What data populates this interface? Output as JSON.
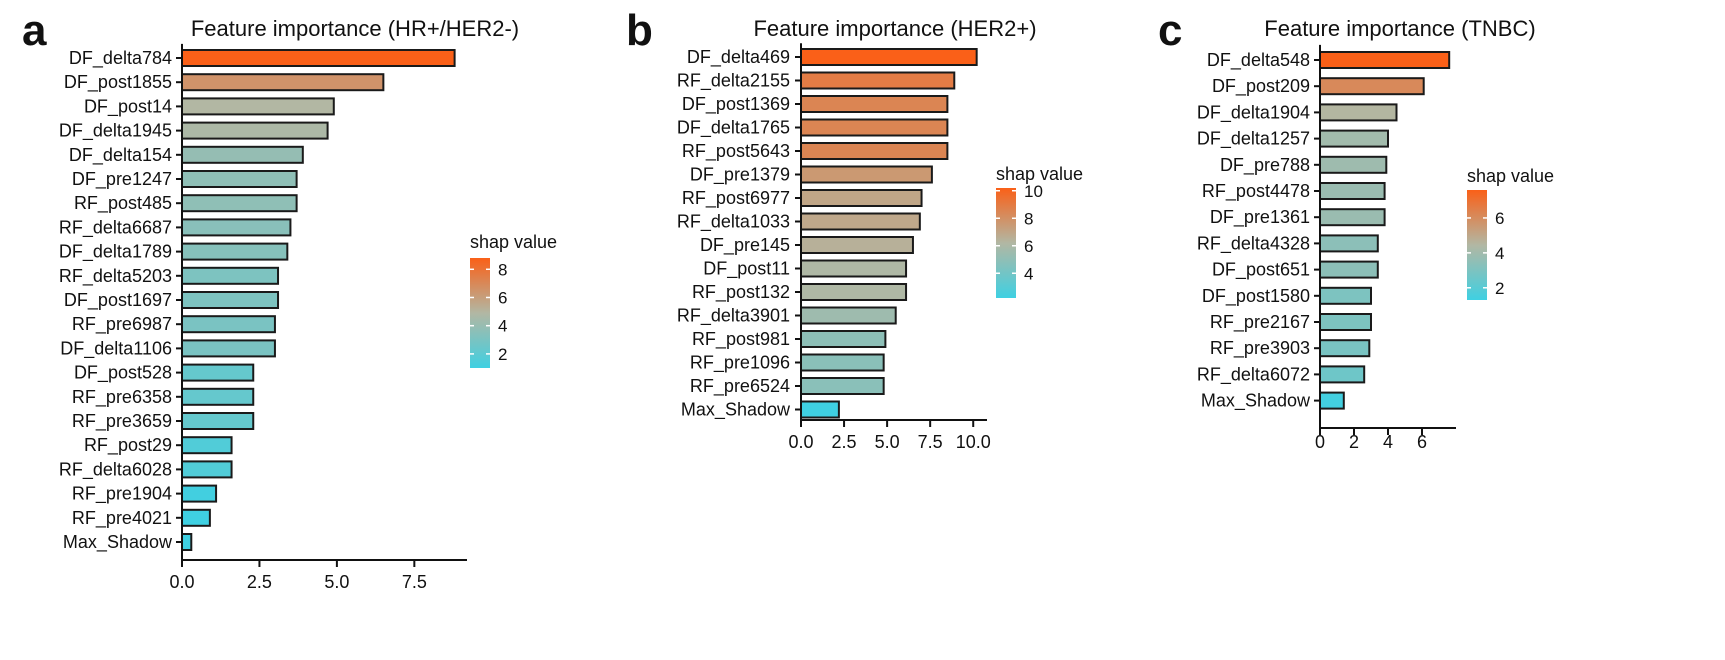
{
  "chart_data": [
    {
      "panel": "a",
      "type": "bar",
      "orientation": "horizontal",
      "title": "Feature importance (HR+/HER2-)",
      "xlabel": "",
      "ylabel": "",
      "categories": [
        "DF_delta784",
        "DF_post1855",
        "DF_post14",
        "DF_delta1945",
        "DF_delta154",
        "DF_pre1247",
        "RF_post485",
        "RF_delta6687",
        "DF_delta1789",
        "RF_delta5203",
        "DF_post1697",
        "RF_pre6987",
        "DF_delta1106",
        "DF_post528",
        "RF_pre6358",
        "RF_pre3659",
        "RF_post29",
        "RF_delta6028",
        "RF_pre1904",
        "RF_pre4021",
        "Max_Shadow"
      ],
      "values": [
        8.8,
        6.5,
        4.9,
        4.7,
        3.9,
        3.7,
        3.7,
        3.5,
        3.4,
        3.1,
        3.1,
        3.0,
        3.0,
        2.3,
        2.3,
        2.3,
        1.6,
        1.6,
        1.1,
        0.9,
        0.3
      ],
      "xlim": [
        0,
        9.2
      ],
      "xticks": [
        "0.0",
        "2.5",
        "5.0",
        "7.5"
      ],
      "xtick_values": [
        0,
        2.5,
        5,
        7.5
      ],
      "legend": {
        "title": "shap value",
        "min": 1,
        "max": 8.8,
        "ticks": [
          "2",
          "4",
          "6",
          "8"
        ],
        "tick_values": [
          2,
          4,
          6,
          8
        ],
        "placement": "right"
      }
    },
    {
      "panel": "b",
      "type": "bar",
      "orientation": "horizontal",
      "title": "Feature importance (HER2+)",
      "xlabel": "",
      "ylabel": "",
      "categories": [
        "DF_delta469",
        "RF_delta2155",
        "DF_post1369",
        "DF_delta1765",
        "RF_post5643",
        "DF_pre1379",
        "RF_post6977",
        "RF_delta1033",
        "DF_pre145",
        "DF_post11",
        "RF_post132",
        "RF_delta3901",
        "RF_post981",
        "RF_pre1096",
        "RF_pre6524",
        "Max_Shadow"
      ],
      "values": [
        10.2,
        8.9,
        8.5,
        8.5,
        8.5,
        7.6,
        7.0,
        6.9,
        6.5,
        6.1,
        6.1,
        5.5,
        4.9,
        4.8,
        4.8,
        2.2
      ],
      "xlim": [
        0,
        10.8
      ],
      "xticks": [
        "0.0",
        "2.5",
        "5.0",
        "7.5",
        "10.0"
      ],
      "xtick_values": [
        0,
        2.5,
        5,
        7.5,
        10
      ],
      "legend": {
        "title": "shap value",
        "min": 2.2,
        "max": 10.2,
        "ticks": [
          "4",
          "6",
          "8",
          "10"
        ],
        "tick_values": [
          4,
          6,
          8,
          10
        ],
        "placement": "right"
      }
    },
    {
      "panel": "c",
      "type": "bar",
      "orientation": "horizontal",
      "title": "Feature importance (TNBC)",
      "xlabel": "",
      "ylabel": "",
      "categories": [
        "DF_delta548",
        "DF_post209",
        "DF_delta1904",
        "DF_delta1257",
        "DF_pre788",
        "RF_post4478",
        "DF_pre1361",
        "RF_delta4328",
        "DF_post651",
        "DF_post1580",
        "RF_pre2167",
        "RF_pre3903",
        "RF_delta6072",
        "Max_Shadow"
      ],
      "values": [
        7.6,
        6.1,
        4.5,
        4.0,
        3.9,
        3.8,
        3.8,
        3.4,
        3.4,
        3.0,
        3.0,
        2.9,
        2.6,
        1.4
      ],
      "xlim": [
        0,
        8.0
      ],
      "xticks": [
        "0",
        "2",
        "4",
        "6"
      ],
      "xtick_values": [
        0,
        2,
        4,
        6
      ],
      "legend": {
        "title": "shap value",
        "min": 1.3,
        "max": 7.6,
        "ticks": [
          "2",
          "4",
          "6"
        ],
        "tick_values": [
          2,
          4,
          6
        ],
        "placement": "right"
      }
    }
  ],
  "colors": {
    "low": "#3fd0e2",
    "mid": "#b2b7a3",
    "high": "#fa6018",
    "axis": "#111111",
    "bar_outline": "#1a1a1a"
  }
}
